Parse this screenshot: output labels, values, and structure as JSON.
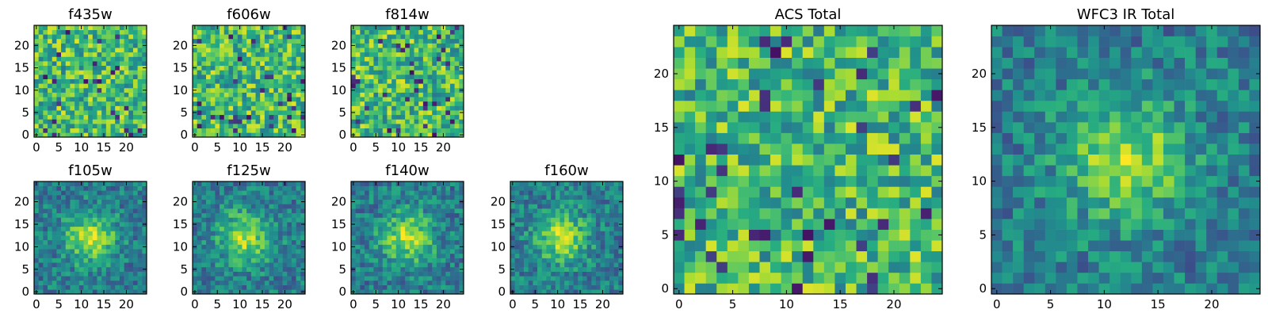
{
  "chart_data": [
    {
      "type": "heatmap",
      "title": "f435w",
      "xticks": [
        0,
        5,
        10,
        15,
        20
      ],
      "yticks": [
        0,
        5,
        10,
        15,
        20
      ],
      "xlim": [
        0,
        24
      ],
      "ylim": [
        0,
        24
      ],
      "colormap": "viridis",
      "grid_size": [
        25,
        25
      ],
      "peak": null
    },
    {
      "type": "heatmap",
      "title": "f606w",
      "xticks": [
        0,
        5,
        10,
        15,
        20
      ],
      "yticks": [
        0,
        5,
        10,
        15,
        20
      ],
      "xlim": [
        0,
        24
      ],
      "ylim": [
        0,
        24
      ],
      "colormap": "viridis",
      "grid_size": [
        25,
        25
      ],
      "peak": null
    },
    {
      "type": "heatmap",
      "title": "f814w",
      "xticks": [
        0,
        5,
        10,
        15,
        20
      ],
      "yticks": [
        0,
        5,
        10,
        15,
        20
      ],
      "xlim": [
        0,
        24
      ],
      "ylim": [
        0,
        24
      ],
      "colormap": "viridis",
      "grid_size": [
        25,
        25
      ],
      "peak": null
    },
    {
      "type": "heatmap",
      "title": "f105w",
      "xticks": [
        0,
        5,
        10,
        15,
        20
      ],
      "yticks": [
        0,
        5,
        10,
        15,
        20
      ],
      "xlim": [
        0,
        24
      ],
      "ylim": [
        0,
        24
      ],
      "colormap": "viridis",
      "grid_size": [
        25,
        25
      ],
      "peak": [
        12,
        12
      ]
    },
    {
      "type": "heatmap",
      "title": "f125w",
      "xticks": [
        0,
        5,
        10,
        15,
        20
      ],
      "yticks": [
        0,
        5,
        10,
        15,
        20
      ],
      "xlim": [
        0,
        24
      ],
      "ylim": [
        0,
        24
      ],
      "colormap": "viridis",
      "grid_size": [
        25,
        25
      ],
      "peak": [
        11,
        12
      ]
    },
    {
      "type": "heatmap",
      "title": "f140w",
      "xticks": [
        0,
        5,
        10,
        15,
        20
      ],
      "yticks": [
        0,
        5,
        10,
        15,
        20
      ],
      "xlim": [
        0,
        24
      ],
      "ylim": [
        0,
        24
      ],
      "colormap": "viridis",
      "grid_size": [
        25,
        25
      ],
      "peak": [
        12,
        12
      ]
    },
    {
      "type": "heatmap",
      "title": "f160w",
      "xticks": [
        0,
        5,
        10,
        15,
        20
      ],
      "yticks": [
        0,
        5,
        10,
        15,
        20
      ],
      "xlim": [
        0,
        24
      ],
      "ylim": [
        0,
        24
      ],
      "colormap": "viridis",
      "grid_size": [
        25,
        25
      ],
      "peak": [
        11,
        12
      ]
    },
    {
      "type": "heatmap",
      "title": "ACS Total",
      "xticks": [
        0,
        5,
        10,
        15,
        20
      ],
      "yticks": [
        0,
        5,
        10,
        15,
        20
      ],
      "xlim": [
        0,
        24
      ],
      "ylim": [
        0,
        24
      ],
      "colormap": "viridis",
      "grid_size": [
        25,
        25
      ],
      "peak": null
    },
    {
      "type": "heatmap",
      "title": "WFC3 IR Total",
      "xticks": [
        0,
        5,
        10,
        15,
        20
      ],
      "yticks": [
        0,
        5,
        10,
        15,
        20
      ],
      "xlim": [
        0,
        24
      ],
      "ylim": [
        0,
        24
      ],
      "colormap": "viridis",
      "grid_size": [
        25,
        25
      ],
      "peak": [
        12,
        12
      ]
    }
  ]
}
